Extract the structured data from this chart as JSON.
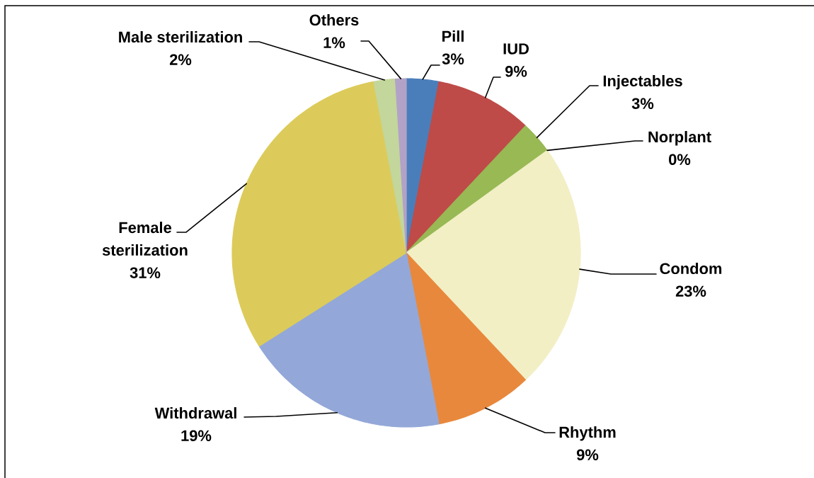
{
  "chart_data": {
    "type": "pie",
    "categories": [
      "Pill",
      "IUD",
      "Injectables",
      "Norplant",
      "Condom",
      "Rhythm",
      "Withdrawal",
      "Female sterilization",
      "Male sterilization",
      "Others"
    ],
    "values": [
      3,
      9,
      3,
      0,
      23,
      9,
      19,
      31,
      2,
      1
    ],
    "value_labels": [
      "3%",
      "9%",
      "3%",
      "0%",
      "23%",
      "9%",
      "19%",
      "31%",
      "2%",
      "1%"
    ],
    "colors": [
      "#4a7ebb",
      "#be4b48",
      "#98b954",
      "#7d60a0",
      "#f2efc5",
      "#e8883c",
      "#93a8d8",
      "#dccb5a",
      "#c3d69b",
      "#b3a2c7"
    ]
  }
}
